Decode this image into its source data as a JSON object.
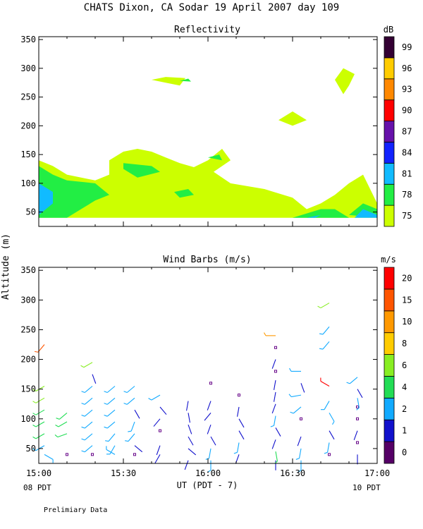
{
  "figure": {
    "title": "CHATS Dixon, CA  Sodar  19 April 2007  day 109",
    "ylabel": "Altitude (m)",
    "xlabel": "UT  (PDT - 7)",
    "left_local_label": "08 PDT",
    "right_local_label": "10 PDT",
    "footer": "Prelimiary Data"
  },
  "chart_data": [
    {
      "type": "heatmap",
      "title": "Reflectivity",
      "x_ticks": [
        "15:00",
        "15:30",
        "16:00",
        "16:30",
        "17:00"
      ],
      "x_range_minutes_after_1500": [
        0,
        120
      ],
      "ylim": [
        25,
        355
      ],
      "y_ticks": [
        50,
        100,
        150,
        200,
        250,
        300,
        350
      ],
      "colorbar": {
        "unit": "dB",
        "levels": [
          75,
          78,
          81,
          84,
          87,
          90,
          93,
          96,
          99
        ],
        "colors": [
          "#ccff00",
          "#22ee44",
          "#11bbff",
          "#1122ff",
          "#6611aa",
          "#ff0000",
          "#ff8800",
          "#ffcc00",
          "#330033"
        ]
      },
      "regions": [
        {
          "level": 75,
          "points": [
            [
              0,
              40
            ],
            [
              0,
              140
            ],
            [
              5,
              130
            ],
            [
              10,
              115
            ],
            [
              20,
              105
            ],
            [
              25,
              115
            ],
            [
              25,
              140
            ],
            [
              30,
              155
            ],
            [
              35,
              160
            ],
            [
              40,
              155
            ],
            [
              45,
              145
            ],
            [
              50,
              135
            ],
            [
              55,
              128
            ],
            [
              60,
              140
            ],
            [
              65,
              160
            ],
            [
              68,
              140
            ],
            [
              62,
              120
            ],
            [
              68,
              100
            ],
            [
              80,
              90
            ],
            [
              90,
              75
            ],
            [
              95,
              55
            ],
            [
              100,
              65
            ],
            [
              105,
              80
            ],
            [
              110,
              100
            ],
            [
              115,
              115
            ],
            [
              120,
              65
            ],
            [
              120,
              40
            ],
            [
              110,
              40
            ],
            [
              100,
              40
            ],
            [
              90,
              40
            ],
            [
              80,
              40
            ],
            [
              70,
              40
            ],
            [
              60,
              40
            ],
            [
              50,
              40
            ],
            [
              40,
              40
            ],
            [
              30,
              40
            ],
            [
              20,
              40
            ],
            [
              10,
              40
            ]
          ]
        },
        {
          "level": 75,
          "points": [
            [
              40,
              280
            ],
            [
              45,
              285
            ],
            [
              52,
              283
            ],
            [
              50,
              270
            ],
            [
              45,
              275
            ]
          ]
        },
        {
          "level": 75,
          "points": [
            [
              85,
              210
            ],
            [
              90,
              225
            ],
            [
              95,
              210
            ],
            [
              90,
              200
            ]
          ]
        },
        {
          "level": 75,
          "points": [
            [
              105,
              280
            ],
            [
              108,
              300
            ],
            [
              112,
              290
            ],
            [
              110,
              270
            ],
            [
              108,
              255
            ]
          ]
        },
        {
          "level": 78,
          "points": [
            [
              0,
              40
            ],
            [
              0,
              130
            ],
            [
              5,
              115
            ],
            [
              10,
              105
            ],
            [
              20,
              100
            ],
            [
              25,
              80
            ],
            [
              20,
              70
            ],
            [
              15,
              55
            ],
            [
              10,
              40
            ]
          ]
        },
        {
          "level": 78,
          "points": [
            [
              30,
              135
            ],
            [
              40,
              130
            ],
            [
              43,
              120
            ],
            [
              35,
              110
            ],
            [
              30,
              125
            ]
          ]
        },
        {
          "level": 78,
          "points": [
            [
              48,
              85
            ],
            [
              53,
              90
            ],
            [
              55,
              80
            ],
            [
              50,
              75
            ]
          ]
        },
        {
          "level": 78,
          "points": [
            [
              60,
              145
            ],
            [
              64,
              150
            ],
            [
              65,
              140
            ]
          ]
        },
        {
          "level": 78,
          "points": [
            [
              50,
              278
            ],
            [
              53,
              282
            ],
            [
              54,
              277
            ]
          ]
        },
        {
          "level": 78,
          "points": [
            [
              90,
              40
            ],
            [
              100,
              55
            ],
            [
              105,
              55
            ],
            [
              110,
              40
            ]
          ]
        },
        {
          "level": 78,
          "points": [
            [
              110,
              45
            ],
            [
              115,
              65
            ],
            [
              120,
              55
            ],
            [
              120,
              40
            ]
          ]
        },
        {
          "level": 81,
          "points": [
            [
              0,
              40
            ],
            [
              0,
              100
            ],
            [
              5,
              85
            ],
            [
              5,
              65
            ],
            [
              0,
              45
            ]
          ]
        },
        {
          "level": 81,
          "points": [
            [
              95,
              40
            ],
            [
              100,
              45
            ],
            [
              98,
              40
            ]
          ]
        },
        {
          "level": 81,
          "points": [
            [
              112,
              40
            ],
            [
              115,
              55
            ],
            [
              120,
              45
            ],
            [
              120,
              40
            ]
          ]
        }
      ]
    },
    {
      "type": "scatter",
      "title": "Wind Barbs (m/s)",
      "x_ticks": [
        "15:00",
        "15:30",
        "16:00",
        "16:30",
        "17:00"
      ],
      "x_range_minutes_after_1500": [
        0,
        120
      ],
      "ylim": [
        25,
        355
      ],
      "y_ticks": [
        50,
        100,
        150,
        200,
        250,
        300,
        350
      ],
      "colorbar": {
        "unit": "m/s",
        "levels": [
          0,
          1,
          2,
          4,
          6,
          8,
          10,
          15,
          20
        ],
        "colors": [
          "#550066",
          "#1111cc",
          "#11aaff",
          "#22dd55",
          "#88ee22",
          "#ffcc00",
          "#ff9900",
          "#ff5500",
          "#ff0000"
        ]
      },
      "columns_minutes": [
        2,
        10,
        19,
        27,
        34,
        43,
        53,
        61,
        71,
        84,
        93,
        103,
        113
      ],
      "heights": [
        40,
        55,
        75,
        95,
        115,
        135,
        155,
        175,
        195,
        215,
        235
      ],
      "barbs": [
        {
          "x": 2,
          "y": 40,
          "spd": 2,
          "dir": 120
        },
        {
          "x": 2,
          "y": 55,
          "spd": 3,
          "dir": 240
        },
        {
          "x": 2,
          "y": 75,
          "spd": 5,
          "dir": 240
        },
        {
          "x": 2,
          "y": 95,
          "spd": 5,
          "dir": 240
        },
        {
          "x": 2,
          "y": 115,
          "spd": 5,
          "dir": 240
        },
        {
          "x": 2,
          "y": 135,
          "spd": 6,
          "dir": 240
        },
        {
          "x": 2,
          "y": 155,
          "spd": 6,
          "dir": 240
        },
        {
          "x": 2,
          "y": 225,
          "spd": 18,
          "dir": 220
        },
        {
          "x": 10,
          "y": 40,
          "spd": 0,
          "dir": 0
        },
        {
          "x": 10,
          "y": 75,
          "spd": 5,
          "dir": 250
        },
        {
          "x": 10,
          "y": 95,
          "spd": 5,
          "dir": 240
        },
        {
          "x": 10,
          "y": 110,
          "spd": 5,
          "dir": 230
        },
        {
          "x": 19,
          "y": 40,
          "spd": 0,
          "dir": 0
        },
        {
          "x": 19,
          "y": 55,
          "spd": 3,
          "dir": 230
        },
        {
          "x": 19,
          "y": 75,
          "spd": 3,
          "dir": 230
        },
        {
          "x": 19,
          "y": 95,
          "spd": 3,
          "dir": 230
        },
        {
          "x": 19,
          "y": 115,
          "spd": 3,
          "dir": 230
        },
        {
          "x": 19,
          "y": 135,
          "spd": 3,
          "dir": 230
        },
        {
          "x": 19,
          "y": 155,
          "spd": 3,
          "dir": 230
        },
        {
          "x": 19,
          "y": 175,
          "spd": 1,
          "dir": 160
        },
        {
          "x": 19,
          "y": 195,
          "spd": 6,
          "dir": 240
        },
        {
          "x": 27,
          "y": 40,
          "spd": 2,
          "dir": 300
        },
        {
          "x": 27,
          "y": 55,
          "spd": 3,
          "dir": 210
        },
        {
          "x": 27,
          "y": 75,
          "spd": 3,
          "dir": 220
        },
        {
          "x": 27,
          "y": 95,
          "spd": 3,
          "dir": 230
        },
        {
          "x": 27,
          "y": 115,
          "spd": 3,
          "dir": 230
        },
        {
          "x": 27,
          "y": 135,
          "spd": 3,
          "dir": 230
        },
        {
          "x": 27,
          "y": 155,
          "spd": 3,
          "dir": 230
        },
        {
          "x": 34,
          "y": 40,
          "spd": 0,
          "dir": 0
        },
        {
          "x": 34,
          "y": 55,
          "spd": 1,
          "dir": 130
        },
        {
          "x": 34,
          "y": 75,
          "spd": 3,
          "dir": 220
        },
        {
          "x": 34,
          "y": 95,
          "spd": 2,
          "dir": 200
        },
        {
          "x": 34,
          "y": 115,
          "spd": 1,
          "dir": 150
        },
        {
          "x": 34,
          "y": 135,
          "spd": 3,
          "dir": 230
        },
        {
          "x": 34,
          "y": 155,
          "spd": 3,
          "dir": 230
        },
        {
          "x": 43,
          "y": 40,
          "spd": 1,
          "dir": 210
        },
        {
          "x": 43,
          "y": 55,
          "spd": 1,
          "dir": 200
        },
        {
          "x": 43,
          "y": 80,
          "spd": 0,
          "dir": 0
        },
        {
          "x": 43,
          "y": 100,
          "spd": 1,
          "dir": 220
        },
        {
          "x": 43,
          "y": 120,
          "spd": 1,
          "dir": 140
        },
        {
          "x": 43,
          "y": 140,
          "spd": 3,
          "dir": 240
        },
        {
          "x": 53,
          "y": 30,
          "spd": 1,
          "dir": 200
        },
        {
          "x": 53,
          "y": 50,
          "spd": 1,
          "dir": 130
        },
        {
          "x": 53,
          "y": 70,
          "spd": 1,
          "dir": 150
        },
        {
          "x": 53,
          "y": 90,
          "spd": 1,
          "dir": 160
        },
        {
          "x": 53,
          "y": 110,
          "spd": 1,
          "dir": 170
        },
        {
          "x": 53,
          "y": 130,
          "spd": 1,
          "dir": 190
        },
        {
          "x": 61,
          "y": 30,
          "spd": 3,
          "dir": 180
        },
        {
          "x": 61,
          "y": 50,
          "spd": 3,
          "dir": 190
        },
        {
          "x": 61,
          "y": 70,
          "spd": 1,
          "dir": 150
        },
        {
          "x": 61,
          "y": 90,
          "spd": 1,
          "dir": 200
        },
        {
          "x": 61,
          "y": 110,
          "spd": 1,
          "dir": 220
        },
        {
          "x": 61,
          "y": 130,
          "spd": 1,
          "dir": 200
        },
        {
          "x": 61,
          "y": 160,
          "spd": 0,
          "dir": 0
        },
        {
          "x": 71,
          "y": 40,
          "spd": 1,
          "dir": 200
        },
        {
          "x": 71,
          "y": 60,
          "spd": 3,
          "dir": 190
        },
        {
          "x": 71,
          "y": 80,
          "spd": 1,
          "dir": 150
        },
        {
          "x": 71,
          "y": 100,
          "spd": 1,
          "dir": 150
        },
        {
          "x": 71,
          "y": 120,
          "spd": 1,
          "dir": 190
        },
        {
          "x": 71,
          "y": 140,
          "spd": 0,
          "dir": 0
        },
        {
          "x": 84,
          "y": 30,
          "spd": 1,
          "dir": 180
        },
        {
          "x": 84,
          "y": 45,
          "spd": 4,
          "dir": 170
        },
        {
          "x": 84,
          "y": 65,
          "spd": 1,
          "dir": 200
        },
        {
          "x": 84,
          "y": 85,
          "spd": 1,
          "dir": 150
        },
        {
          "x": 84,
          "y": 105,
          "spd": 3,
          "dir": 190
        },
        {
          "x": 84,
          "y": 125,
          "spd": 1,
          "dir": 200
        },
        {
          "x": 84,
          "y": 145,
          "spd": 1,
          "dir": 190
        },
        {
          "x": 84,
          "y": 165,
          "spd": 1,
          "dir": 190
        },
        {
          "x": 84,
          "y": 180,
          "spd": 0,
          "dir": 0
        },
        {
          "x": 84,
          "y": 200,
          "spd": 1,
          "dir": 200
        },
        {
          "x": 84,
          "y": 220,
          "spd": 0,
          "dir": 0
        },
        {
          "x": 84,
          "y": 240,
          "spd": 10,
          "dir": 270
        },
        {
          "x": 93,
          "y": 30,
          "spd": 3,
          "dir": 180
        },
        {
          "x": 93,
          "y": 50,
          "spd": 3,
          "dir": 190
        },
        {
          "x": 93,
          "y": 70,
          "spd": 1,
          "dir": 200
        },
        {
          "x": 93,
          "y": 100,
          "spd": 0,
          "dir": 0
        },
        {
          "x": 93,
          "y": 120,
          "spd": 3,
          "dir": 230
        },
        {
          "x": 93,
          "y": 140,
          "spd": 3,
          "dir": 260
        },
        {
          "x": 93,
          "y": 160,
          "spd": 1,
          "dir": 160
        },
        {
          "x": 93,
          "y": 180,
          "spd": 3,
          "dir": 270
        },
        {
          "x": 103,
          "y": 40,
          "spd": 0,
          "dir": 0
        },
        {
          "x": 103,
          "y": 60,
          "spd": 3,
          "dir": 190
        },
        {
          "x": 103,
          "y": 80,
          "spd": 1,
          "dir": 150
        },
        {
          "x": 103,
          "y": 110,
          "spd": 3,
          "dir": 150
        },
        {
          "x": 103,
          "y": 130,
          "spd": 3,
          "dir": 210
        },
        {
          "x": 103,
          "y": 155,
          "spd": 20,
          "dir": 300
        },
        {
          "x": 103,
          "y": 230,
          "spd": 3,
          "dir": 220
        },
        {
          "x": 103,
          "y": 255,
          "spd": 3,
          "dir": 220
        },
        {
          "x": 103,
          "y": 295,
          "spd": 6,
          "dir": 240
        },
        {
          "x": 113,
          "y": 40,
          "spd": 1,
          "dir": 180
        },
        {
          "x": 113,
          "y": 60,
          "spd": 0,
          "dir": 0
        },
        {
          "x": 113,
          "y": 80,
          "spd": 1,
          "dir": 200
        },
        {
          "x": 113,
          "y": 100,
          "spd": 0,
          "dir": 0
        },
        {
          "x": 113,
          "y": 120,
          "spd": 0,
          "dir": 0
        },
        {
          "x": 113,
          "y": 135,
          "spd": 3,
          "dir": 170
        },
        {
          "x": 113,
          "y": 150,
          "spd": 1,
          "dir": 150
        },
        {
          "x": 113,
          "y": 170,
          "spd": 3,
          "dir": 230
        }
      ]
    }
  ]
}
